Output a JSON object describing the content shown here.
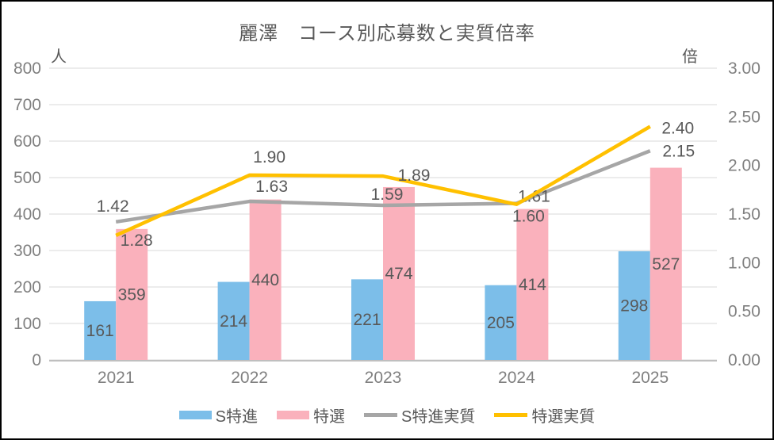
{
  "chart_data": {
    "type": "combo-bar-line",
    "title": "麗澤　コース別応募数と実質倍率",
    "categories": [
      "2021",
      "2022",
      "2023",
      "2024",
      "2025"
    ],
    "left_axis": {
      "unit": "人",
      "min": 0,
      "max": 800,
      "step": 100,
      "tick_labels": [
        "0",
        "100",
        "200",
        "300",
        "400",
        "500",
        "600",
        "700",
        "800"
      ]
    },
    "right_axis": {
      "unit": "倍",
      "min": 0,
      "max": 3,
      "step": 0.5,
      "tick_labels": [
        "0.00",
        "0.50",
        "1.00",
        "1.50",
        "2.00",
        "2.50",
        "3.00"
      ]
    },
    "series": [
      {
        "name": "S特進",
        "type": "bar",
        "axis": "left",
        "color": "#7CBEE9",
        "values": [
          161,
          214,
          221,
          205,
          298
        ],
        "labels": [
          "161",
          "214",
          "221",
          "205",
          "298"
        ]
      },
      {
        "name": "特選",
        "type": "bar",
        "axis": "left",
        "color": "#FAB1BC",
        "values": [
          359,
          440,
          474,
          414,
          527
        ],
        "labels": [
          "359",
          "440",
          "474",
          "414",
          "527"
        ]
      },
      {
        "name": "S特進実質",
        "type": "line",
        "axis": "right",
        "color": "#A6A6A6",
        "values": [
          1.42,
          1.63,
          1.59,
          1.61,
          2.15
        ],
        "labels": [
          "1.42",
          "1.63",
          "1.59",
          "1.61",
          "2.15"
        ]
      },
      {
        "name": "特選実質",
        "type": "line",
        "axis": "right",
        "color": "#FFC000",
        "values": [
          1.28,
          1.9,
          1.89,
          1.6,
          2.4
        ],
        "labels": [
          "1.28",
          "1.90",
          "1.89",
          "1.60",
          "2.40"
        ]
      }
    ],
    "grid": true,
    "legend_position": "bottom"
  },
  "colors": {
    "title_text": "#595959",
    "axis_text": "#808080",
    "data_label_text": "#595959",
    "gridline": "#D9D9D9",
    "axis_line": "#BFBFBF",
    "background": "#FFFFFF",
    "frame_border": "#000000"
  }
}
